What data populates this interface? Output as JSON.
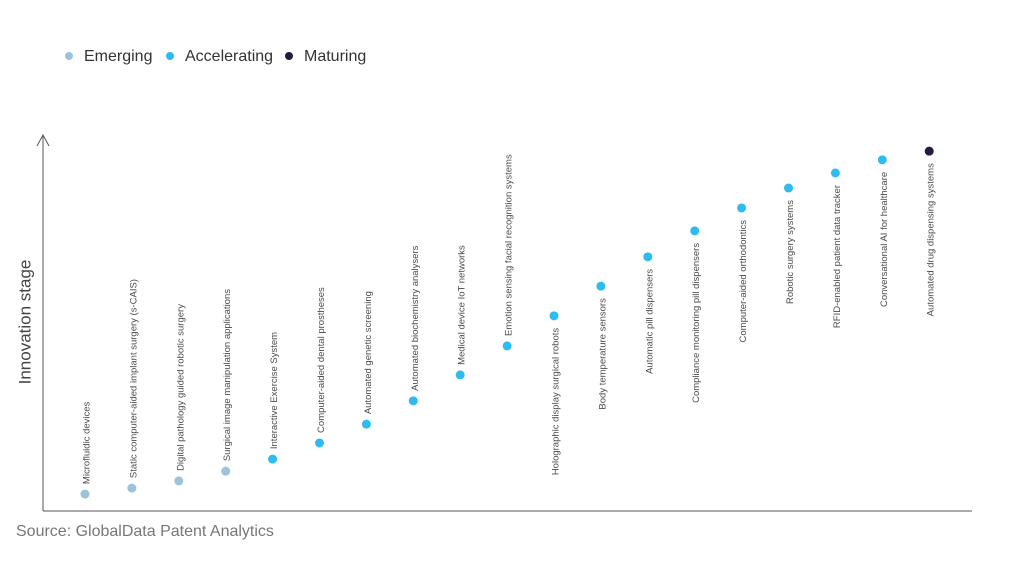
{
  "chart_data": {
    "type": "scatter",
    "y_label": "Innovation stage",
    "source": "Source: GlobalData Patent Analytics",
    "categories": [
      "Microfluidic devices",
      "Static computer-aided implant surgery (s-CAIS)",
      "Digital pathology guided robotic surgery",
      "Surgical image manipulation applications",
      "Interactive Exercise System",
      "Computer-aided dental prostheses",
      "Automated genetic screening",
      "Automated biochemistry analysers",
      "Medical device IoT networks",
      "Emotion sensing facial recognition systems",
      "Holographic display surgical robots",
      "Body temperature sensors",
      "Automatic pill dispensers",
      "Compliance monitoring pill dispensers",
      "Computer-aided orthodontics",
      "Robotic surgery systems",
      "RFID-enabled patient data tracker",
      "Conversational AI for healthcare",
      "Automated drug dispensing systems"
    ],
    "ylim": [
      0,
      100
    ],
    "series": [
      {
        "name": "Emerging",
        "color": "#9dc3d9",
        "values": [
          4.5,
          6.1,
          8.0,
          10.6,
          null,
          null,
          null,
          null,
          null,
          null,
          null,
          null,
          null,
          null,
          null,
          null,
          null,
          null,
          null
        ]
      },
      {
        "name": "Accelerating",
        "color": "#2ebcf0",
        "values": [
          null,
          null,
          null,
          null,
          13.8,
          18.1,
          23.1,
          29.3,
          36.2,
          43.9,
          51.9,
          59.8,
          67.6,
          74.5,
          80.6,
          85.9,
          89.9,
          93.4,
          null
        ]
      },
      {
        "name": "Maturing",
        "color": "#271a3f",
        "values": [
          null,
          null,
          null,
          null,
          null,
          null,
          null,
          null,
          null,
          null,
          null,
          null,
          null,
          null,
          null,
          null,
          null,
          null,
          95.7
        ]
      }
    ]
  }
}
